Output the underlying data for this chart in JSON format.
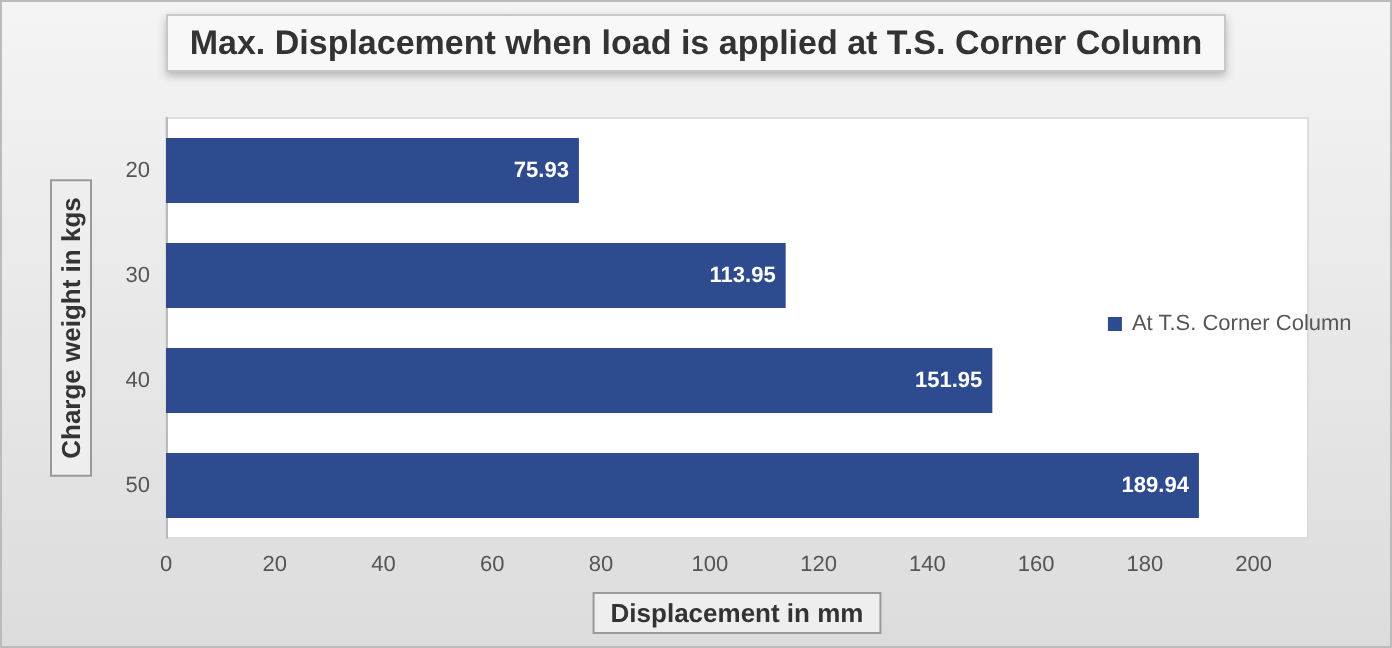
{
  "chart_data": {
    "type": "bar",
    "orientation": "horizontal",
    "title": "Max. Displacement when load is applied at T.S. Corner Column",
    "xlabel": "Displacement in mm",
    "ylabel": "Charge weight in kgs",
    "categories": [
      "20",
      "30",
      "40",
      "50"
    ],
    "series": [
      {
        "name": "At T.S. Corner Column",
        "color": "#2f4b8f",
        "values": [
          75.93,
          113.95,
          151.95,
          189.94
        ]
      }
    ],
    "xlim": [
      0,
      210
    ],
    "xticks": [
      0,
      20,
      40,
      60,
      80,
      100,
      120,
      140,
      160,
      180,
      200
    ],
    "data_labels": true,
    "legend": "right",
    "grid": false
  }
}
